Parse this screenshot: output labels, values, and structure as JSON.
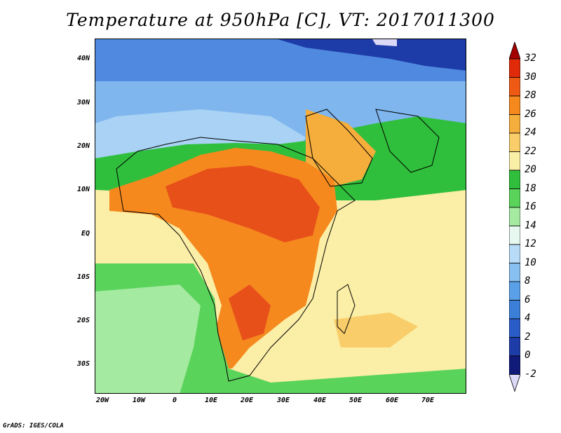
{
  "title": "Temperature at 950hPa [C], VT: 2017011300",
  "footer": "GrADS: IGES/COLA",
  "lat_labels": [
    "40N",
    "30N",
    "20N",
    "10N",
    "EQ",
    "10S",
    "20S",
    "30S"
  ],
  "lon_labels": [
    "20W",
    "10W",
    "0",
    "10E",
    "20E",
    "30E",
    "40E",
    "50E",
    "60E",
    "70E"
  ],
  "colorbar": {
    "labels": [
      "32",
      "30",
      "28",
      "26",
      "24",
      "22",
      "20",
      "18",
      "16",
      "14",
      "12",
      "10",
      "8",
      "6",
      "4",
      "2",
      "0",
      "-2"
    ],
    "colors": [
      "#a50000",
      "#e02a0a",
      "#ee5a14",
      "#f5891e",
      "#f5ad3c",
      "#f8cd6a",
      "#fbeea6",
      "#2fbf3c",
      "#5ad35a",
      "#a4eaa0",
      "#e6f8f0",
      "#b8dcf8",
      "#87c0f0",
      "#5aa0e8",
      "#3c7fd8",
      "#2a5cc8",
      "#1e3ca8",
      "#101a78",
      "#dcd8f8"
    ]
  },
  "map": {
    "ocean_south_color": "#3fbf44",
    "ocean_tropical_color": "#fbeea6",
    "hot_core_color": "#e8501a",
    "cold_north_color": "#6aa6e8"
  }
}
